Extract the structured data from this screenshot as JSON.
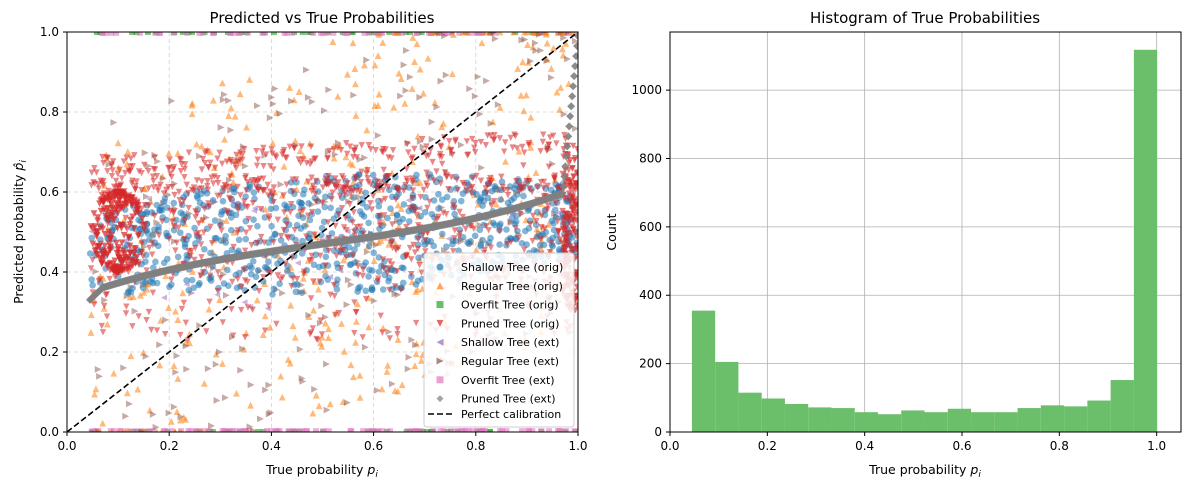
{
  "chart_data": [
    {
      "type": "scatter",
      "title": "Predicted vs True Probabilities",
      "xlabel": "True probability",
      "xlabel_var": "p",
      "xlabel_sub": "i",
      "ylabel": "Predicted probability",
      "ylabel_var": "p̂",
      "ylabel_sub": "i",
      "xlim": [
        0.0,
        1.0
      ],
      "ylim": [
        0.0,
        1.0
      ],
      "xticks": [
        "0.0",
        "0.2",
        "0.4",
        "0.6",
        "0.8",
        "1.0"
      ],
      "yticks": [
        "0.0",
        "0.2",
        "0.4",
        "0.6",
        "0.8",
        "1.0"
      ],
      "grid": true,
      "legend_position": "lower-right",
      "series": [
        {
          "name": "Shallow Tree (orig)",
          "marker": "circle",
          "color": "#1f77b4"
        },
        {
          "name": "Regular Tree (orig)",
          "marker": "triangle-up",
          "color": "#ff7f0e"
        },
        {
          "name": "Overfit Tree (orig)",
          "marker": "square",
          "color": "#2ca02c"
        },
        {
          "name": "Pruned Tree (orig)",
          "marker": "triangle-down",
          "color": "#d62728"
        },
        {
          "name": "Shallow Tree (ext)",
          "marker": "triangle-left",
          "color": "#9467bd"
        },
        {
          "name": "Regular Tree (ext)",
          "marker": "triangle-right",
          "color": "#8c564b"
        },
        {
          "name": "Overfit Tree (ext)",
          "marker": "x-square",
          "color": "#e377c2"
        },
        {
          "name": "Pruned Tree (ext)",
          "marker": "diamond",
          "color": "#7f7f7f"
        }
      ],
      "reference_line": {
        "name": "Perfect calibration",
        "style": "dashed",
        "color": "#000000",
        "from": [
          0,
          0
        ],
        "to": [
          1,
          1
        ]
      }
    },
    {
      "type": "bar",
      "title": "Histogram of True Probabilities",
      "xlabel": "True probability",
      "xlabel_var": "p",
      "xlabel_sub": "i",
      "ylabel": "Count",
      "xlim": [
        0.0,
        1.05
      ],
      "ylim": [
        0,
        1170
      ],
      "xticks": [
        "0.0",
        "0.2",
        "0.4",
        "0.6",
        "0.8",
        "1.0"
      ],
      "yticks": [
        "0",
        "200",
        "400",
        "600",
        "800",
        "1000"
      ],
      "grid": true,
      "color": "#6bbf6b",
      "bin_start": 0.045,
      "bin_width": 0.0478,
      "values": [
        355,
        205,
        115,
        98,
        82,
        72,
        70,
        58,
        52,
        63,
        58,
        68,
        58,
        58,
        70,
        78,
        75,
        92,
        152,
        1118
      ]
    }
  ]
}
